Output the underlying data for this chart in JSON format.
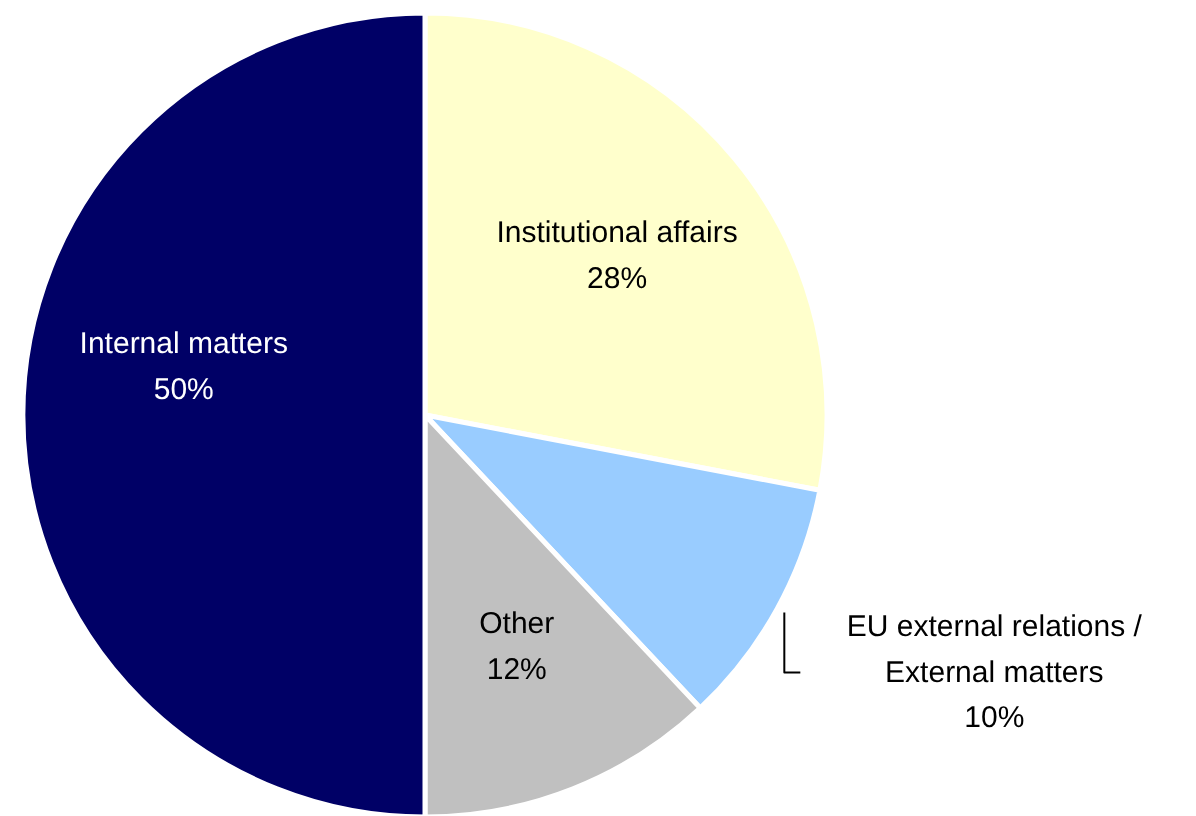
{
  "chart_data": {
    "type": "pie",
    "categories": [
      "Institutional affairs",
      "EU external relations /\nExternal matters",
      "Other",
      "Internal matters"
    ],
    "values": [
      28,
      10,
      12,
      50
    ],
    "value_labels": [
      "28%",
      "10%",
      "12%",
      "50%"
    ],
    "colors": [
      "#ffffcc",
      "#99ccff",
      "#c0c0c0",
      "#000066"
    ]
  }
}
